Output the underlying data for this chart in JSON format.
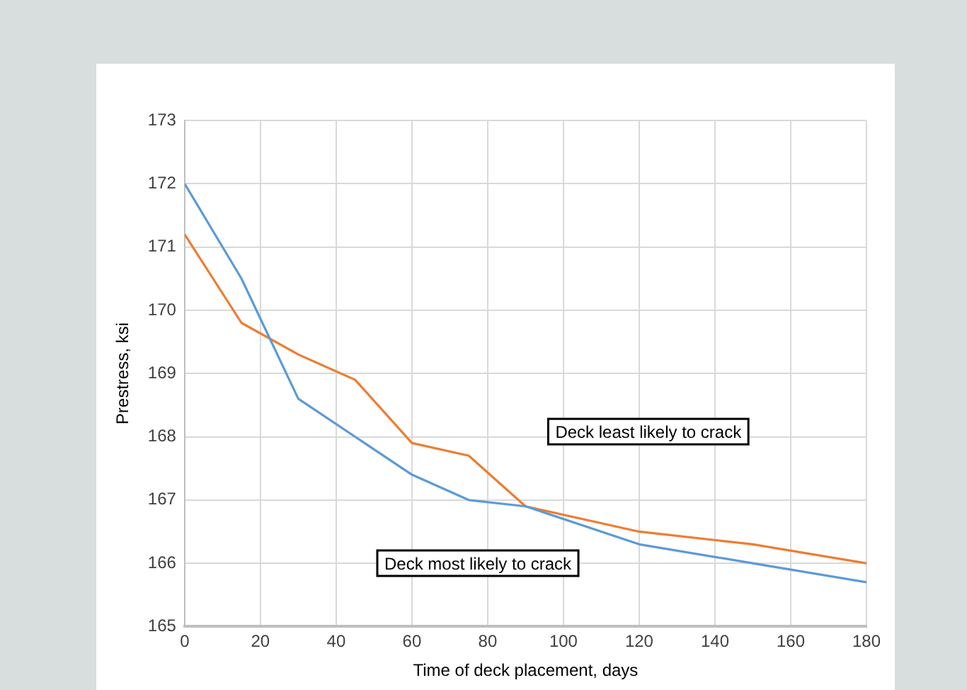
{
  "chart_data": {
    "type": "line",
    "xlabel": "Time of deck placement, days",
    "ylabel": "Prestress, ksi",
    "x": [
      0,
      15,
      30,
      45,
      60,
      75,
      90,
      120,
      150,
      180
    ],
    "series": [
      {
        "color": "#5b9bd5",
        "values": [
          172,
          170.5,
          168.6,
          168.0,
          167.4,
          167.0,
          166.9,
          166.3,
          166.0,
          165.7
        ]
      },
      {
        "color": "#ed7d31",
        "values": [
          171.2,
          169.8,
          169.3,
          168.9,
          167.9,
          167.7,
          166.9,
          166.5,
          166.3,
          166.0
        ]
      }
    ],
    "xlim": [
      0,
      180
    ],
    "xticks": [
      0,
      20,
      40,
      60,
      80,
      100,
      120,
      140,
      160,
      180
    ],
    "ylim": [
      165,
      173
    ],
    "yticks": [
      165,
      166,
      167,
      168,
      169,
      170,
      171,
      172,
      173
    ],
    "grid": true,
    "legend": false,
    "marker": "none",
    "line_style": "solid",
    "annotations": [
      "Deck least likely to crack",
      "Deck most likely to crack"
    ]
  }
}
